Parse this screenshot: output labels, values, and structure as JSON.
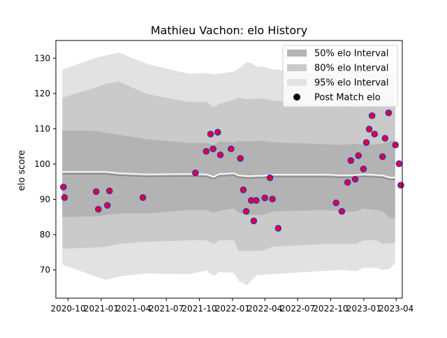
{
  "chart_data": {
    "type": "line",
    "title": "Mathieu Vachon: elo History",
    "xlabel": "",
    "ylabel": "elo score",
    "x_range": [
      "2020-08-28",
      "2023-04-18"
    ],
    "ylim": [
      62,
      135
    ],
    "y_ticks": [
      70,
      80,
      90,
      100,
      110,
      120,
      130
    ],
    "x_ticks": [
      {
        "date": "2020-10-01",
        "label": "2020-10"
      },
      {
        "date": "2021-01-01",
        "label": "2021-01"
      },
      {
        "date": "2021-04-01",
        "label": "2021-04"
      },
      {
        "date": "2021-07-01",
        "label": "2021-07"
      },
      {
        "date": "2021-10-01",
        "label": "2021-10"
      },
      {
        "date": "2022-01-01",
        "label": "2022-01"
      },
      {
        "date": "2022-04-01",
        "label": "2022-04"
      },
      {
        "date": "2022-07-01",
        "label": "2022-07"
      },
      {
        "date": "2022-10-01",
        "label": "2022-10"
      },
      {
        "date": "2023-01-01",
        "label": "2023-01"
      },
      {
        "date": "2023-04-01",
        "label": "2023-04"
      }
    ],
    "legend": {
      "placement": "top-right",
      "entries": [
        "50% elo Interval",
        "80% elo Interval",
        "95% elo Interval",
        "Post Match elo"
      ]
    },
    "colors": {
      "band50": "#b3b3b3",
      "band80": "#cacaca",
      "band95": "#e2e2e2",
      "mean_line": "#888888",
      "mean_white": "#ffffff",
      "marker_face": "#e8002a",
      "marker_edge": "#3333cc"
    },
    "bands": {
      "x": [
        "2020-09-15",
        "2020-12-21",
        "2021-01-15",
        "2021-02-20",
        "2021-05-08",
        "2021-09-01",
        "2021-10-20",
        "2021-11-10",
        "2021-11-25",
        "2022-01-05",
        "2022-01-18",
        "2022-02-10",
        "2022-02-22",
        "2022-03-10",
        "2022-03-25",
        "2022-04-22",
        "2022-09-20",
        "2022-11-01",
        "2022-12-10",
        "2022-12-31",
        "2023-02-05",
        "2023-02-22",
        "2023-03-15",
        "2023-03-29"
      ],
      "mean": [
        97.2,
        97.2,
        97.2,
        96.8,
        96.5,
        96.6,
        96.5,
        95.8,
        96.6,
        96.8,
        96.2,
        96.0,
        96.0,
        96.1,
        96.1,
        96.4,
        96.4,
        96.2,
        96.3,
        96.5,
        96.3,
        96.2,
        95.6,
        95.6
      ],
      "band50": [
        [
          85.0,
          109.5
        ],
        [
          85.2,
          109.4
        ],
        [
          85.6,
          108.8
        ],
        [
          86.0,
          108.3
        ],
        [
          86.0,
          107.0
        ],
        [
          87.0,
          106.0
        ],
        [
          87.0,
          106.0
        ],
        [
          86.2,
          105.4
        ],
        [
          86.8,
          106.4
        ],
        [
          87.4,
          106.2
        ],
        [
          86.2,
          106.6
        ],
        [
          85.6,
          106.4
        ],
        [
          85.6,
          106.4
        ],
        [
          85.6,
          106.6
        ],
        [
          85.6,
          106.6
        ],
        [
          86.6,
          106.2
        ],
        [
          87.0,
          105.6
        ],
        [
          86.6,
          105.4
        ],
        [
          86.6,
          105.8
        ],
        [
          87.4,
          105.4
        ],
        [
          87.0,
          105.6
        ],
        [
          86.6,
          105.8
        ],
        [
          84.6,
          106.6
        ],
        [
          84.6,
          106.6
        ]
      ],
      "band80": [
        [
          76.0,
          118.8
        ],
        [
          76.4,
          121.8
        ],
        [
          76.6,
          122.8
        ],
        [
          77.4,
          123.4
        ],
        [
          78.0,
          119.8
        ],
        [
          78.4,
          117.6
        ],
        [
          78.4,
          117.6
        ],
        [
          77.4,
          116.0
        ],
        [
          78.4,
          117.0
        ],
        [
          78.4,
          118.2
        ],
        [
          75.4,
          118.8
        ],
        [
          75.4,
          118.4
        ],
        [
          75.4,
          118.4
        ],
        [
          75.4,
          118.6
        ],
        [
          75.4,
          118.6
        ],
        [
          76.6,
          118.0
        ],
        [
          77.4,
          116.4
        ],
        [
          77.4,
          116.6
        ],
        [
          77.4,
          117.0
        ],
        [
          78.4,
          117.0
        ],
        [
          78.4,
          116.4
        ],
        [
          77.4,
          116.8
        ],
        [
          77.6,
          117.4
        ],
        [
          77.6,
          117.4
        ]
      ],
      "band95": [
        [
          71.5,
          126.8
        ],
        [
          68.0,
          130.2
        ],
        [
          67.2,
          130.8
        ],
        [
          68.2,
          131.6
        ],
        [
          69.0,
          128.4
        ],
        [
          68.8,
          125.6
        ],
        [
          69.8,
          125.8
        ],
        [
          68.4,
          125.4
        ],
        [
          69.4,
          125.6
        ],
        [
          69.2,
          126.2
        ],
        [
          67.0,
          127.0
        ],
        [
          65.6,
          128.8
        ],
        [
          67.0,
          128.6
        ],
        [
          68.6,
          127.6
        ],
        [
          68.6,
          127.6
        ],
        [
          68.8,
          126.8
        ],
        [
          69.8,
          125.6
        ],
        [
          70.0,
          126.2
        ],
        [
          69.6,
          126.8
        ],
        [
          70.6,
          126.2
        ],
        [
          70.6,
          125.8
        ],
        [
          70.0,
          126.8
        ],
        [
          70.4,
          125.6
        ],
        [
          72.0,
          125.6
        ]
      ]
    },
    "series": [
      {
        "name": "Post Match elo",
        "x": [
          "2020-09-18",
          "2020-09-21",
          "2020-12-18",
          "2020-12-24",
          "2021-01-18",
          "2021-01-24",
          "2021-04-27",
          "2021-09-20",
          "2021-10-20",
          "2021-11-01",
          "2021-11-08",
          "2021-11-21",
          "2021-11-28",
          "2021-12-28",
          "2022-01-23",
          "2022-01-31",
          "2022-02-08",
          "2022-02-22",
          "2022-03-01",
          "2022-03-08",
          "2022-04-01",
          "2022-04-15",
          "2022-04-22",
          "2022-05-08",
          "2022-10-16",
          "2022-11-01",
          "2022-11-17",
          "2022-11-26",
          "2022-12-08",
          "2022-12-17",
          "2022-12-31",
          "2023-01-08",
          "2023-01-16",
          "2023-01-24",
          "2023-01-31",
          "2023-02-22",
          "2023-03-01",
          "2023-03-11",
          "2023-03-30",
          "2023-04-09",
          "2023-04-14"
        ],
        "y": [
          93.5,
          90.5,
          92.2,
          87.2,
          88.3,
          92.4,
          90.5,
          97.5,
          103.6,
          108.5,
          104.3,
          109.0,
          102.6,
          104.3,
          101.6,
          92.7,
          86.6,
          89.7,
          83.9,
          89.7,
          90.4,
          96.1,
          90.1,
          81.8,
          89.0,
          86.6,
          94.8,
          101.0,
          95.7,
          102.4,
          98.6,
          106.1,
          109.9,
          113.7,
          108.5,
          102.1,
          107.3,
          114.5,
          105.4,
          100.1,
          94.0
        ]
      }
    ]
  }
}
